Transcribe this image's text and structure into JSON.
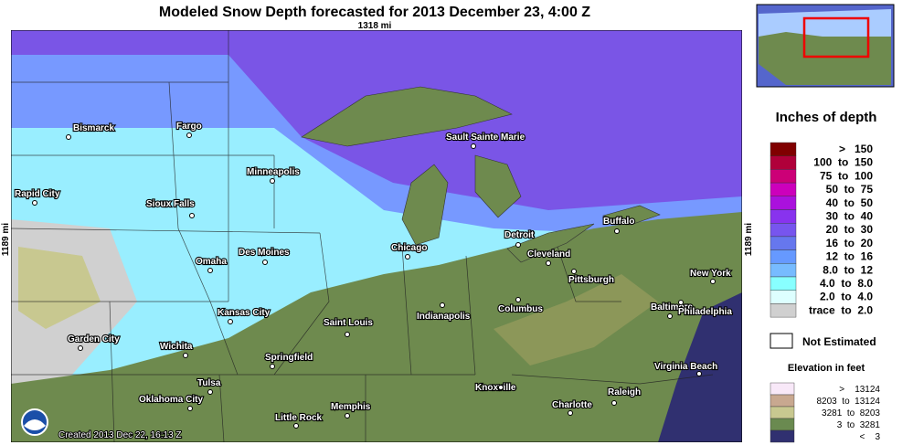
{
  "header": {
    "title": "Modeled Snow Depth forecasted for 2013 December 23, 4:00 Z",
    "width_label": "1318 mi",
    "height_label": "1189 mi"
  },
  "footer": {
    "created": "Created 2013 Dec 22, 16:13 Z"
  },
  "cities": [
    "Bismarck",
    "Fargo",
    "Minneapolis",
    "Rapid City",
    "Sioux Falls",
    "Des Moines",
    "Omaha",
    "Kansas City",
    "Garden City",
    "Wichita",
    "Springfield",
    "Saint Louis",
    "Chicago",
    "Indianapolis",
    "Columbus",
    "Detroit",
    "Cleveland",
    "Pittsburgh",
    "Buffalo",
    "New York",
    "Baltimore",
    "Philadelphia",
    "Virginia Beach",
    "Sault Sainte Marie",
    "Tulsa",
    "Oklahoma City",
    "Little Rock",
    "Memphis",
    "Knoxville",
    "Raleigh",
    "Charlotte"
  ],
  "legend": {
    "title": "Inches of depth",
    "items": [
      {
        "label": ">   150",
        "color": "#800000"
      },
      {
        "label": "100  to  150",
        "color": "#b0003a"
      },
      {
        "label": "75  to  100",
        "color": "#cc0077"
      },
      {
        "label": "50  to  75",
        "color": "#cc00bb"
      },
      {
        "label": "40  to  50",
        "color": "#aa11dd"
      },
      {
        "label": "30  to  40",
        "color": "#8833ee"
      },
      {
        "label": "20  to  30",
        "color": "#7755ee"
      },
      {
        "label": "16  to  20",
        "color": "#6677ee"
      },
      {
        "label": "12  to  16",
        "color": "#6699ff"
      },
      {
        "label": "8.0  to  12",
        "color": "#77bbff"
      },
      {
        "label": "4.0  to  8.0",
        "color": "#88ffff"
      },
      {
        "label": "2.0  to  4.0",
        "color": "#ddffff"
      },
      {
        "label": "trace  to  2.0",
        "color": "#d0d0d0"
      }
    ],
    "not_estimated": "Not Estimated",
    "elevation_title": "Elevation in feet",
    "elevation_items": [
      {
        "label": ">    13124",
        "color": "#f8e8f8"
      },
      {
        "label": "8203  to  13124",
        "color": "#c8a890"
      },
      {
        "label": "3281  to  8203",
        "color": "#c8c890"
      },
      {
        "label": "3  to  3281",
        "color": "#6a8a50"
      },
      {
        "label": "<    3",
        "color": "#303070"
      }
    ]
  }
}
